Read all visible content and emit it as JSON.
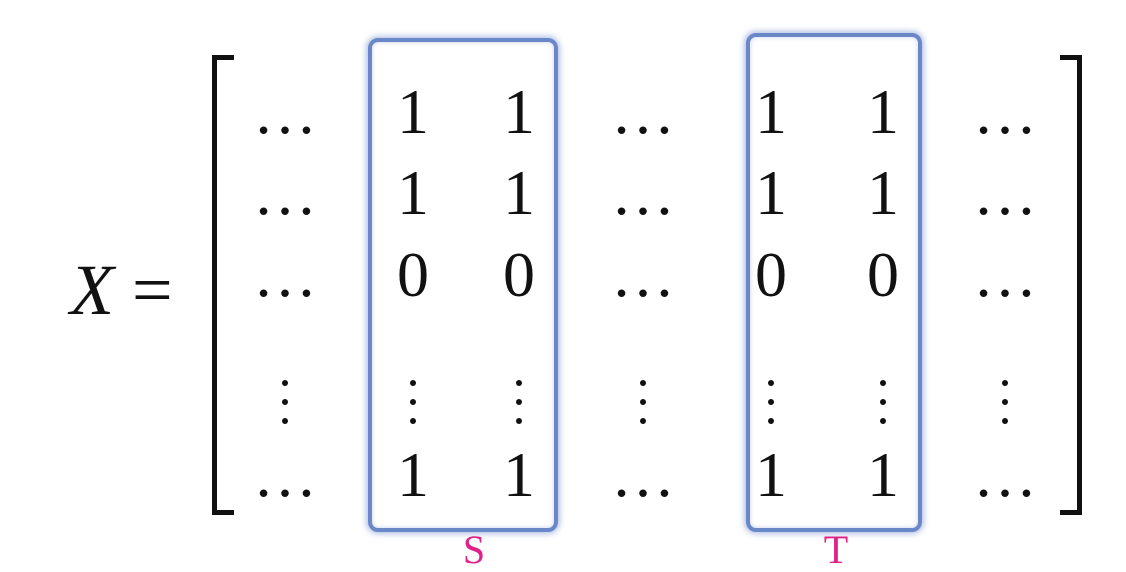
{
  "lhs": {
    "variable": "X",
    "equals": "="
  },
  "matrix": {
    "rows": [
      [
        "…",
        "1",
        "1",
        "…",
        "1",
        "1",
        "…"
      ],
      [
        "…",
        "1",
        "1",
        "…",
        "1",
        "1",
        "…"
      ],
      [
        "…",
        "0",
        "0",
        "…",
        "0",
        "0",
        "…"
      ],
      [
        "⋮",
        "⋮",
        "⋮",
        "⋮",
        "⋮",
        "⋮",
        "⋮"
      ],
      [
        "…",
        "1",
        "1",
        "…",
        "1",
        "1",
        "…"
      ]
    ]
  },
  "groups": [
    {
      "label": "S"
    },
    {
      "label": "T"
    }
  ],
  "colors": {
    "box": "#6a87c8",
    "label": "#e0218a",
    "text": "#111111"
  }
}
